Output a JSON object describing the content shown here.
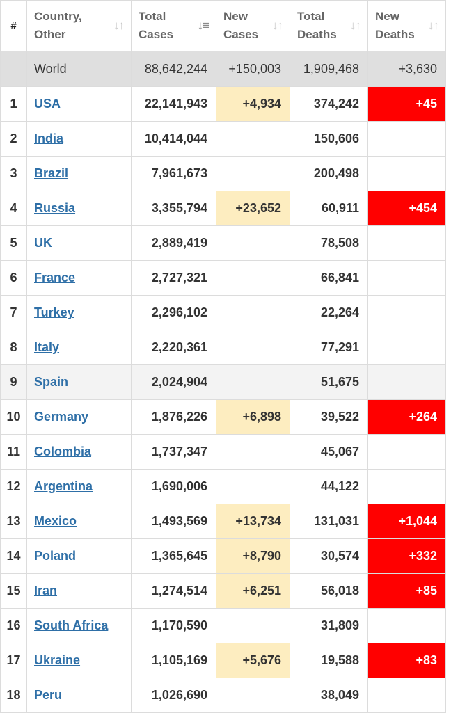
{
  "headers": {
    "index": "#",
    "country": [
      "Country,",
      "Other"
    ],
    "total_cases": [
      "Total",
      "Cases"
    ],
    "new_cases": [
      "New",
      "Cases"
    ],
    "total_deaths": [
      "Total",
      "Deaths"
    ],
    "new_deaths": [
      "New",
      "Deaths"
    ]
  },
  "sort_icons": {
    "inactive": "sort-both-icon",
    "active": "sort-desc-icon"
  },
  "world": {
    "name": "World",
    "total_cases": "88,642,244",
    "new_cases": "+150,003",
    "total_deaths": "1,909,468",
    "new_deaths": "+3,630"
  },
  "rows": [
    {
      "idx": "1",
      "country": "USA",
      "total_cases": "22,141,943",
      "new_cases": "+4,934",
      "total_deaths": "374,242",
      "new_deaths": "+45"
    },
    {
      "idx": "2",
      "country": "India",
      "total_cases": "10,414,044",
      "new_cases": "",
      "total_deaths": "150,606",
      "new_deaths": ""
    },
    {
      "idx": "3",
      "country": "Brazil",
      "total_cases": "7,961,673",
      "new_cases": "",
      "total_deaths": "200,498",
      "new_deaths": ""
    },
    {
      "idx": "4",
      "country": "Russia",
      "total_cases": "3,355,794",
      "new_cases": "+23,652",
      "total_deaths": "60,911",
      "new_deaths": "+454"
    },
    {
      "idx": "5",
      "country": "UK",
      "total_cases": "2,889,419",
      "new_cases": "",
      "total_deaths": "78,508",
      "new_deaths": ""
    },
    {
      "idx": "6",
      "country": "France",
      "total_cases": "2,727,321",
      "new_cases": "",
      "total_deaths": "66,841",
      "new_deaths": ""
    },
    {
      "idx": "7",
      "country": "Turkey",
      "total_cases": "2,296,102",
      "new_cases": "",
      "total_deaths": "22,264",
      "new_deaths": ""
    },
    {
      "idx": "8",
      "country": "Italy",
      "total_cases": "2,220,361",
      "new_cases": "",
      "total_deaths": "77,291",
      "new_deaths": ""
    },
    {
      "idx": "9",
      "country": "Spain",
      "total_cases": "2,024,904",
      "new_cases": "",
      "total_deaths": "51,675",
      "new_deaths": ""
    },
    {
      "idx": "10",
      "country": "Germany",
      "total_cases": "1,876,226",
      "new_cases": "+6,898",
      "total_deaths": "39,522",
      "new_deaths": "+264"
    },
    {
      "idx": "11",
      "country": "Colombia",
      "total_cases": "1,737,347",
      "new_cases": "",
      "total_deaths": "45,067",
      "new_deaths": ""
    },
    {
      "idx": "12",
      "country": "Argentina",
      "total_cases": "1,690,006",
      "new_cases": "",
      "total_deaths": "44,122",
      "new_deaths": ""
    },
    {
      "idx": "13",
      "country": "Mexico",
      "total_cases": "1,493,569",
      "new_cases": "+13,734",
      "total_deaths": "131,031",
      "new_deaths": "+1,044"
    },
    {
      "idx": "14",
      "country": "Poland",
      "total_cases": "1,365,645",
      "new_cases": "+8,790",
      "total_deaths": "30,574",
      "new_deaths": "+332"
    },
    {
      "idx": "15",
      "country": "Iran",
      "total_cases": "1,274,514",
      "new_cases": "+6,251",
      "total_deaths": "56,018",
      "new_deaths": "+85"
    },
    {
      "idx": "16",
      "country": "South Africa",
      "total_cases": "1,170,590",
      "new_cases": "",
      "total_deaths": "31,809",
      "new_deaths": ""
    },
    {
      "idx": "17",
      "country": "Ukraine",
      "total_cases": "1,105,169",
      "new_cases": "+5,676",
      "total_deaths": "19,588",
      "new_deaths": "+83"
    },
    {
      "idx": "18",
      "country": "Peru",
      "total_cases": "1,026,690",
      "new_cases": "",
      "total_deaths": "38,049",
      "new_deaths": ""
    }
  ],
  "highlighted_row_index": "9",
  "colors": {
    "new_cases_highlight": "#fdedc0",
    "new_deaths_highlight": "#ff0000",
    "link": "#2e6fa7",
    "world_row": "#dfdfdf",
    "hover_row": "#f3f3f3"
  }
}
